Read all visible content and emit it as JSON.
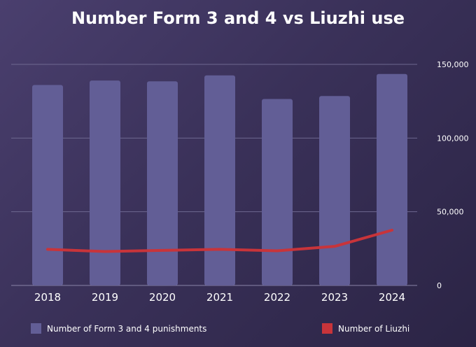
{
  "chart_data": {
    "type": "bar",
    "title": "Number Form 3 and 4 vs Liuzhi use",
    "categories": [
      "2018",
      "2019",
      "2020",
      "2021",
      "2022",
      "2023",
      "2024"
    ],
    "series": [
      {
        "name": "Number of Form 3 and 4 punishments",
        "type": "bar",
        "color": "#625e96",
        "values": [
          136000,
          139000,
          138500,
          142500,
          126500,
          128500,
          143500
        ]
      },
      {
        "name": "Number of Liuzhi",
        "type": "line",
        "color": "#c8343a",
        "values": [
          24500,
          23000,
          23800,
          24500,
          23500,
          26500,
          37500
        ]
      }
    ],
    "y_axis": {
      "position": "right",
      "ylim": [
        0,
        150000
      ],
      "ticks": [
        0,
        50000,
        100000,
        150000
      ],
      "tick_labels": [
        "0",
        "50,000",
        "100,000",
        "150,000"
      ]
    },
    "grid": true,
    "legend": "bottom"
  }
}
